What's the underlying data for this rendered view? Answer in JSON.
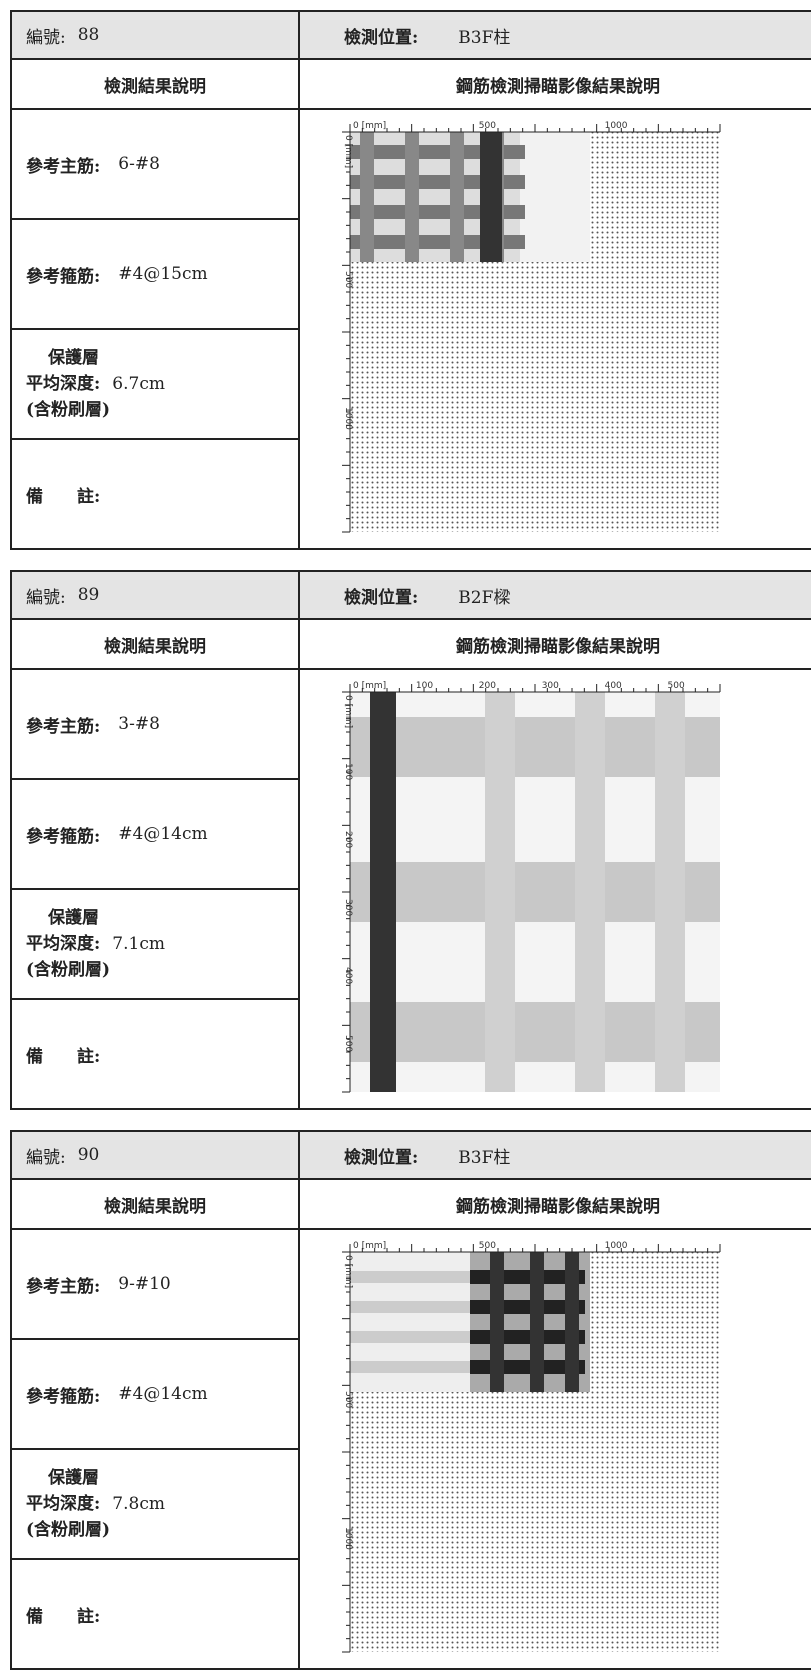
{
  "records": [
    {
      "number_label": "編號:",
      "number": "88",
      "location_label": "檢測位置:",
      "location": "B3F柱",
      "result_header": "檢測結果說明",
      "scan_header": "鋼筋檢測掃瞄影像結果說明",
      "main_rebar_label": "參考主筋:",
      "main_rebar": "6-#8",
      "stirrup_label": "參考箍筋:",
      "stirrup": "#4@15cm",
      "cover_label": [
        "保護層",
        "平均深度:",
        "(含粉刷層)"
      ],
      "cover": "6.7cm",
      "remark_label": "備　　註:",
      "scan_x_labels": [
        "0 [mm]",
        "500",
        "1000"
      ],
      "scan_y_labels": [
        "0 [mm]",
        "500",
        "1000"
      ]
    },
    {
      "number_label": "編號:",
      "number": "89",
      "location_label": "檢測位置:",
      "location": "B2F樑",
      "result_header": "檢測結果說明",
      "scan_header": "鋼筋檢測掃瞄影像結果說明",
      "main_rebar_label": "參考主筋:",
      "main_rebar": "3-#8",
      "stirrup_label": "參考箍筋:",
      "stirrup": "#4@14cm",
      "cover_label": [
        "保護層",
        "平均深度:",
        "(含粉刷層)"
      ],
      "cover": "7.1cm",
      "remark_label": "備　　註:",
      "scan_x_labels": [
        "0 [mm]",
        "100",
        "200",
        "300",
        "400",
        "500"
      ],
      "scan_y_labels": [
        "0 [mm]",
        "100",
        "200",
        "300",
        "400",
        "500"
      ]
    },
    {
      "number_label": "編號:",
      "number": "90",
      "location_label": "檢測位置:",
      "location": "B3F柱",
      "result_header": "檢測結果說明",
      "scan_header": "鋼筋檢測掃瞄影像結果說明",
      "main_rebar_label": "參考主筋:",
      "main_rebar": "9-#10",
      "stirrup_label": "參考箍筋:",
      "stirrup": "#4@14cm",
      "cover_label": [
        "保護層",
        "平均深度:",
        "(含粉刷層)"
      ],
      "cover": "7.8cm",
      "remark_label": "備　　註:",
      "scan_x_labels": [
        "0 [mm]",
        "500",
        "1000"
      ],
      "scan_y_labels": [
        "0 [mm]",
        "500",
        "1000"
      ]
    }
  ]
}
